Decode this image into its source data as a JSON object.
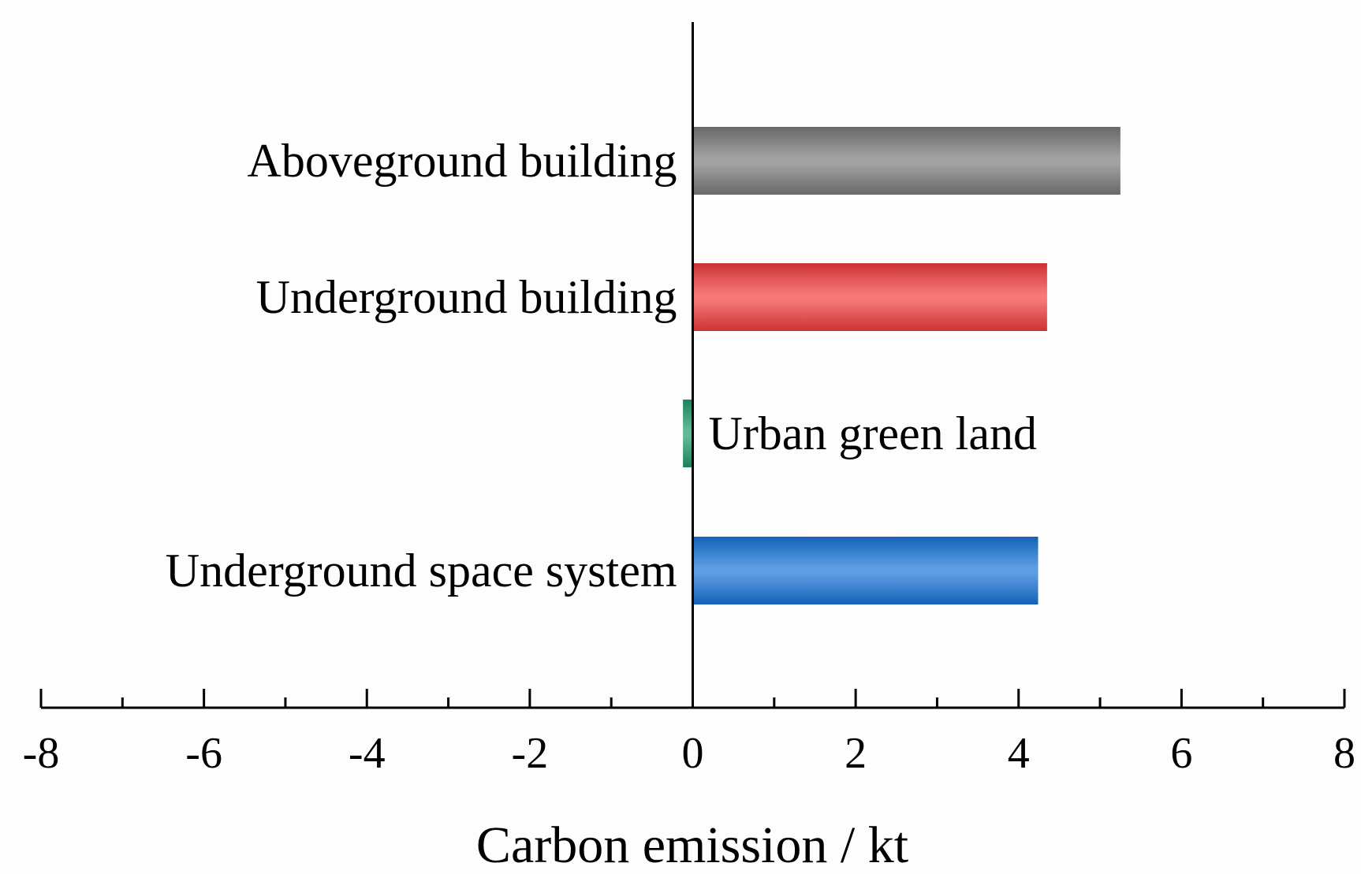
{
  "chart_data": {
    "type": "bar",
    "orientation": "horizontal",
    "categories": [
      "Aboveground building",
      "Underground building",
      "Urban green land",
      "Underground space system"
    ],
    "values": [
      5.25,
      4.35,
      -0.12,
      4.24
    ],
    "colors": [
      "#7a7a7a",
      "#f03c3c",
      "#1f9a6a",
      "#1873d6"
    ],
    "xlabel": "Carbon emission / kt",
    "ylabel": "",
    "xlim": [
      -8,
      8
    ],
    "xticks": [
      -8,
      -6,
      -4,
      -2,
      0,
      2,
      4,
      6,
      8
    ],
    "xticks_minor": [
      -7,
      -5,
      -3,
      -1,
      1,
      3,
      5,
      7
    ],
    "grid": false
  }
}
